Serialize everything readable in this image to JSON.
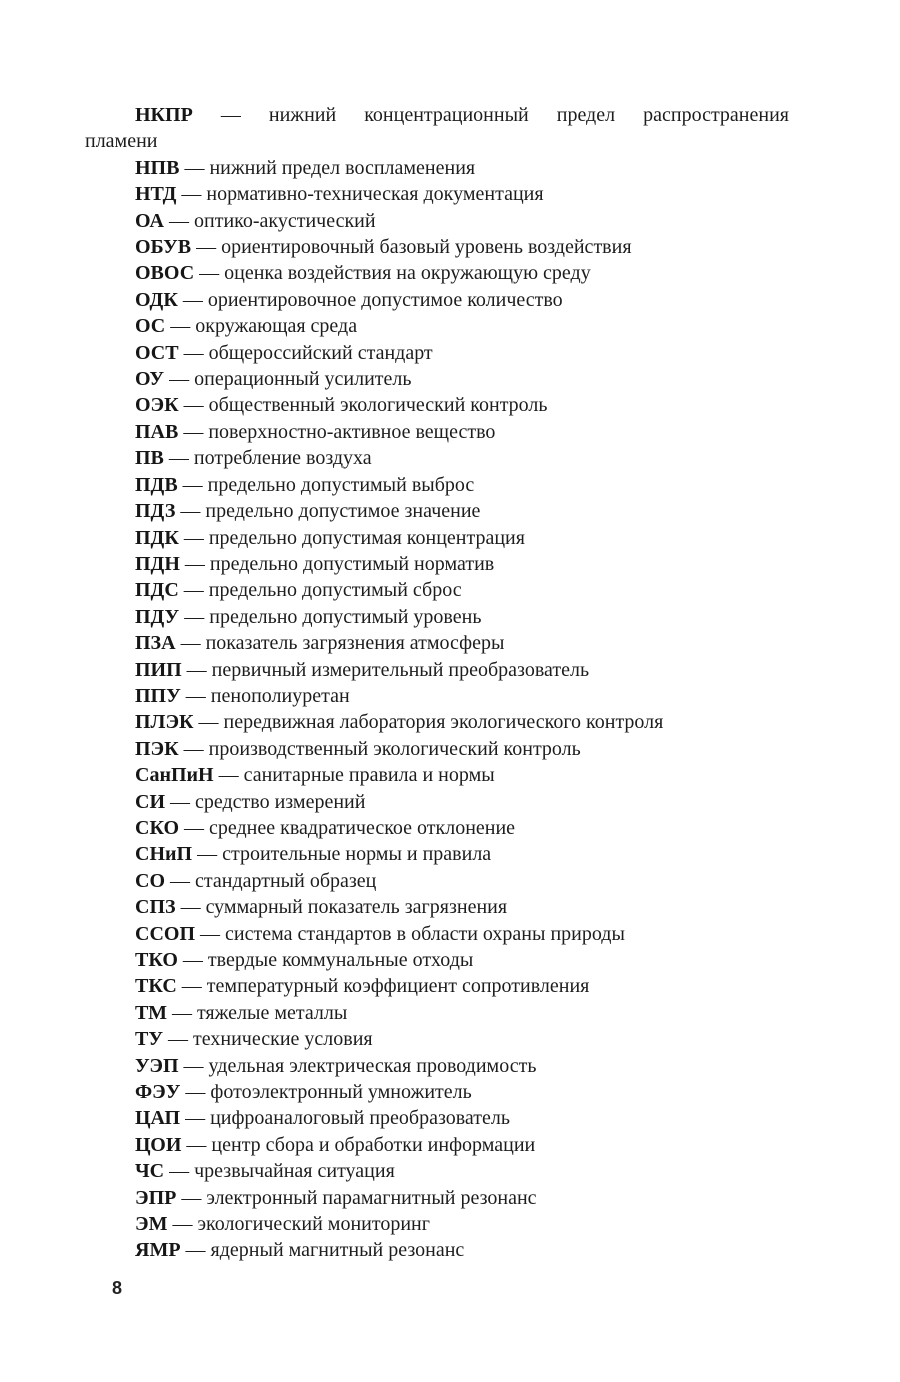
{
  "page_number": "8",
  "separator": " — ",
  "entries": [
    {
      "abbr": "НКПР",
      "desc": "нижний концентрационный предел распространения\nпламени"
    },
    {
      "abbr": "НПВ",
      "desc": "нижний предел воспламенения"
    },
    {
      "abbr": "НТД",
      "desc": "нормативно-техническая документация"
    },
    {
      "abbr": "ОА",
      "desc": "оптико-акустический"
    },
    {
      "abbr": "ОБУВ",
      "desc": "ориентировочный базовый уровень воздействия"
    },
    {
      "abbr": "ОВОС",
      "desc": "оценка воздействия на окружающую среду"
    },
    {
      "abbr": "ОДК",
      "desc": "ориентировочное допустимое количество"
    },
    {
      "abbr": "ОС",
      "desc": "окружающая среда"
    },
    {
      "abbr": "ОСТ",
      "desc": "общероссийский стандарт"
    },
    {
      "abbr": "ОУ",
      "desc": "операционный усилитель"
    },
    {
      "abbr": "ОЭК",
      "desc": "общественный экологический контроль"
    },
    {
      "abbr": "ПАВ",
      "desc": "поверхностно-активное вещество"
    },
    {
      "abbr": "ПВ",
      "desc": "потребление воздуха"
    },
    {
      "abbr": "ПДВ",
      "desc": "предельно допустимый выброс"
    },
    {
      "abbr": "ПДЗ",
      "desc": "предельно допустимое значение"
    },
    {
      "abbr": "ПДК",
      "desc": "предельно допустимая концентрация"
    },
    {
      "abbr": "ПДН",
      "desc": "предельно допустимый норматив"
    },
    {
      "abbr": "ПДС",
      "desc": "предельно допустимый сброс"
    },
    {
      "abbr": "ПДУ",
      "desc": "предельно допустимый уровень"
    },
    {
      "abbr": "ПЗА",
      "desc": "показатель загрязнения атмосферы"
    },
    {
      "abbr": "ПИП",
      "desc": "первичный измерительный преобразователь"
    },
    {
      "abbr": "ППУ",
      "desc": "пенополиуретан"
    },
    {
      "abbr": "ПЛЭК",
      "desc": "передвижная лаборатория экологического контроля"
    },
    {
      "abbr": "ПЭК",
      "desc": "производственный экологический контроль"
    },
    {
      "abbr": "СанПиН",
      "desc": "санитарные правила и нормы"
    },
    {
      "abbr": "СИ",
      "desc": "средство измерений"
    },
    {
      "abbr": "СКО",
      "desc": "среднее квадратическое отклонение"
    },
    {
      "abbr": "СНиП",
      "desc": "строительные нормы и правила"
    },
    {
      "abbr": "СО",
      "desc": "стандартный образец"
    },
    {
      "abbr": "СПЗ",
      "desc": "суммарный показатель загрязнения"
    },
    {
      "abbr": "ССОП",
      "desc": "система стандартов в области охраны природы"
    },
    {
      "abbr": "ТКО",
      "desc": "твердые коммунальные отходы"
    },
    {
      "abbr": "ТКС",
      "desc": "температурный коэффициент сопротивления"
    },
    {
      "abbr": "ТМ",
      "desc": "тяжелые металлы"
    },
    {
      "abbr": "ТУ",
      "desc": "технические условия"
    },
    {
      "abbr": "УЭП",
      "desc": "удельная электрическая проводимость"
    },
    {
      "abbr": "ФЭУ",
      "desc": "фотоэлектронный умножитель"
    },
    {
      "abbr": "ЦАП",
      "desc": "цифроаналоговый преобразователь"
    },
    {
      "abbr": "ЦОИ",
      "desc": "центр сбора и обработки информации"
    },
    {
      "abbr": "ЧС",
      "desc": "чрезвычайная ситуация"
    },
    {
      "abbr": "ЭПР",
      "desc": "электронный парамагнитный резонанс"
    },
    {
      "abbr": "ЭМ",
      "desc": "экологический мониторинг"
    },
    {
      "abbr": "ЯМР",
      "desc": "ядерный магнитный резонанс"
    }
  ]
}
